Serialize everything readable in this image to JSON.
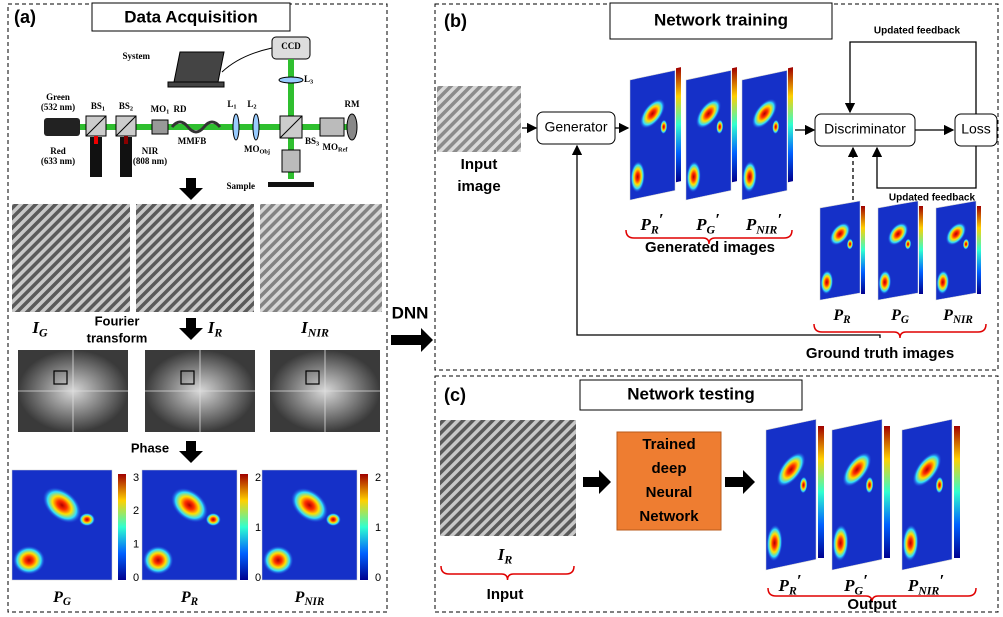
{
  "panel_a": {
    "letter": "(a)",
    "title": "Data Acquisition",
    "setup_labels": [
      {
        "main": "System"
      },
      {
        "main": "CCD"
      },
      {
        "main": "L",
        "sub": "3"
      },
      {
        "main": "Green"
      },
      {
        "main": "(532 nm)"
      },
      {
        "main": "BS",
        "sub": "1"
      },
      {
        "main": "BS",
        "sub": "2"
      },
      {
        "main": "MO",
        "sub": "1"
      },
      {
        "main": "RD"
      },
      {
        "main": "L",
        "sub": "1"
      },
      {
        "main": "L",
        "sub": "2"
      },
      {
        "main": "BS",
        "sub": "3"
      },
      {
        "main": "RM"
      },
      {
        "main": "MMFB"
      },
      {
        "main": "MO",
        "sub": "Ref"
      },
      {
        "main": "MO",
        "sub": "Obj"
      },
      {
        "main": "Red"
      },
      {
        "main": "(633 nm)"
      },
      {
        "main": "NIR"
      },
      {
        "main": "(808 nm)"
      },
      {
        "main": "Sample"
      }
    ],
    "fringe_labels": [
      {
        "main": "I",
        "sub": "G"
      },
      {
        "main": "I",
        "sub": "R"
      },
      {
        "main": "I",
        "sub": "NIR"
      }
    ],
    "fourier_label": [
      "Fourier",
      "transform"
    ],
    "phase_label": "Phase",
    "phase_maps": [
      {
        "label": {
          "main": "P",
          "sub": "G"
        },
        "colorbar_ticks": [
          "3",
          "2",
          "1",
          "0"
        ]
      },
      {
        "label": {
          "main": "P",
          "sub": "R"
        },
        "colorbar_ticks": [
          "2",
          "1",
          "0"
        ]
      },
      {
        "label": {
          "main": "P",
          "sub": "NIR"
        },
        "colorbar_ticks": [
          "2",
          "1",
          "0"
        ]
      }
    ]
  },
  "arrow_label": "DNN",
  "panel_b": {
    "letter": "(b)",
    "title": "Network training",
    "input_label": [
      "Input",
      "image"
    ],
    "generator": "Generator",
    "discriminator": "Discriminator",
    "loss": "Loss",
    "feedback_top": "Updated feedback",
    "feedback_bottom": "Updated feedback",
    "generated": [
      {
        "main": "P",
        "sub": "R",
        "sup": "′"
      },
      {
        "main": "P",
        "sub": "G",
        "sup": "′"
      },
      {
        "main": "P",
        "sub": "NIR",
        "sup": "′"
      }
    ],
    "generated_label": "Generated images",
    "ground_truth": [
      {
        "main": "P",
        "sub": "R"
      },
      {
        "main": "P",
        "sub": "G"
      },
      {
        "main": "P",
        "sub": "NIR"
      }
    ],
    "ground_truth_label": "Ground truth images"
  },
  "panel_c": {
    "letter": "(c)",
    "title": "Network testing",
    "input_image_label": {
      "main": "I",
      "sub": "R"
    },
    "input_label": "Input",
    "network": [
      "Trained",
      "deep",
      "Neural",
      "Network"
    ],
    "outputs": [
      {
        "main": "P",
        "sub": "R",
        "sup": "′"
      },
      {
        "main": "P",
        "sub": "G",
        "sup": "′"
      },
      {
        "main": "P",
        "sub": "NIR",
        "sup": "′"
      }
    ],
    "output_label": "Output"
  }
}
